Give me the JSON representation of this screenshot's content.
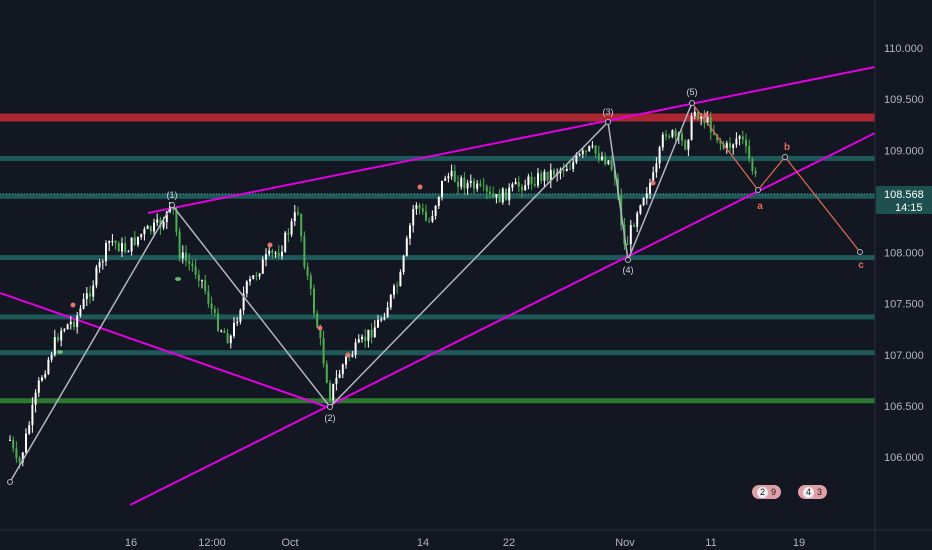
{
  "chart_data": {
    "type": "candlestick",
    "symbol_price_current": "108.568",
    "countdown": "14:15",
    "y_ticks": [
      "110.000",
      "109.500",
      "109.000",
      "108.500",
      "108.000",
      "107.500",
      "107.000",
      "106.500",
      "106.000"
    ],
    "x_ticks": [
      "16",
      "12:00",
      "Oct",
      "14",
      "22",
      "Nov",
      "11",
      "19"
    ],
    "horizontal_levels": [
      {
        "price": 109.32,
        "color": "#b22833"
      },
      {
        "price": 108.92,
        "color": "#1f5c5c"
      },
      {
        "price": 108.55,
        "color": "#1f5c5c"
      },
      {
        "price": 107.95,
        "color": "#1f5c5c"
      },
      {
        "price": 107.37,
        "color": "#1f5c5c"
      },
      {
        "price": 107.02,
        "color": "#1f5c5c"
      },
      {
        "price": 106.55,
        "color": "#2e7d32"
      }
    ],
    "wave_labels": [
      "(1)",
      "(2)",
      "(3)",
      "(4)",
      "(5)"
    ],
    "abc_labels": [
      "a",
      "b",
      "c"
    ],
    "colors": {
      "background": "#131722",
      "candle_up": "#ffffff",
      "candle_down": "#4caf50",
      "channel": "#e100e1",
      "wave_line": "#b2b5be",
      "abc_line": "#e06a55",
      "price_tag_bg": "#1e5050"
    }
  },
  "badges": [
    {
      "left": "2",
      "right": "9"
    },
    {
      "left": "4",
      "right": "3"
    }
  ]
}
